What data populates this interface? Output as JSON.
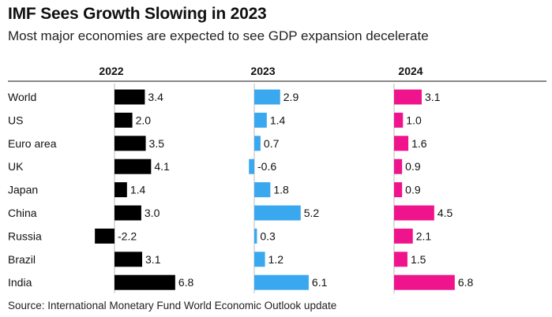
{
  "title": "IMF Sees Growth Slowing in 2023",
  "subtitle": "Most major economies are expected to see GDP expansion decelerate",
  "source": "Source: International Monetary Fund World Economic Outlook update",
  "chart_data": {
    "type": "bar",
    "orientation": "horizontal",
    "categories": [
      "World",
      "US",
      "Euro area",
      "UK",
      "Japan",
      "China",
      "Russia",
      "Brazil",
      "India"
    ],
    "series": [
      {
        "name": "2022",
        "color": "#000000",
        "values": [
          3.4,
          2.0,
          3.5,
          4.1,
          1.4,
          3.0,
          -2.2,
          3.1,
          6.8
        ],
        "labels": [
          "3.4",
          "2.0",
          "3.5",
          "4.1",
          "1.4",
          "3.0",
          "-2.2",
          "3.1",
          "6.8"
        ]
      },
      {
        "name": "2023",
        "color": "#3aa8ef",
        "values": [
          2.9,
          1.4,
          0.7,
          -0.6,
          1.8,
          5.2,
          0.3,
          1.2,
          6.1
        ],
        "labels": [
          "2.9",
          "1.4",
          "0.7",
          "-0.6",
          "1.8",
          "5.2",
          "0.3",
          "1.2",
          "6.1"
        ]
      },
      {
        "name": "2024",
        "color": "#f0148c",
        "values": [
          3.1,
          1.0,
          1.6,
          0.9,
          0.9,
          4.5,
          2.1,
          1.5,
          6.8
        ],
        "labels": [
          "3.1",
          "1.0",
          "1.6",
          "0.9",
          "0.9",
          "4.5",
          "2.1",
          "1.5",
          "6.8"
        ]
      }
    ],
    "xlabel": "",
    "ylabel": "",
    "unit": "percent GDP growth"
  }
}
